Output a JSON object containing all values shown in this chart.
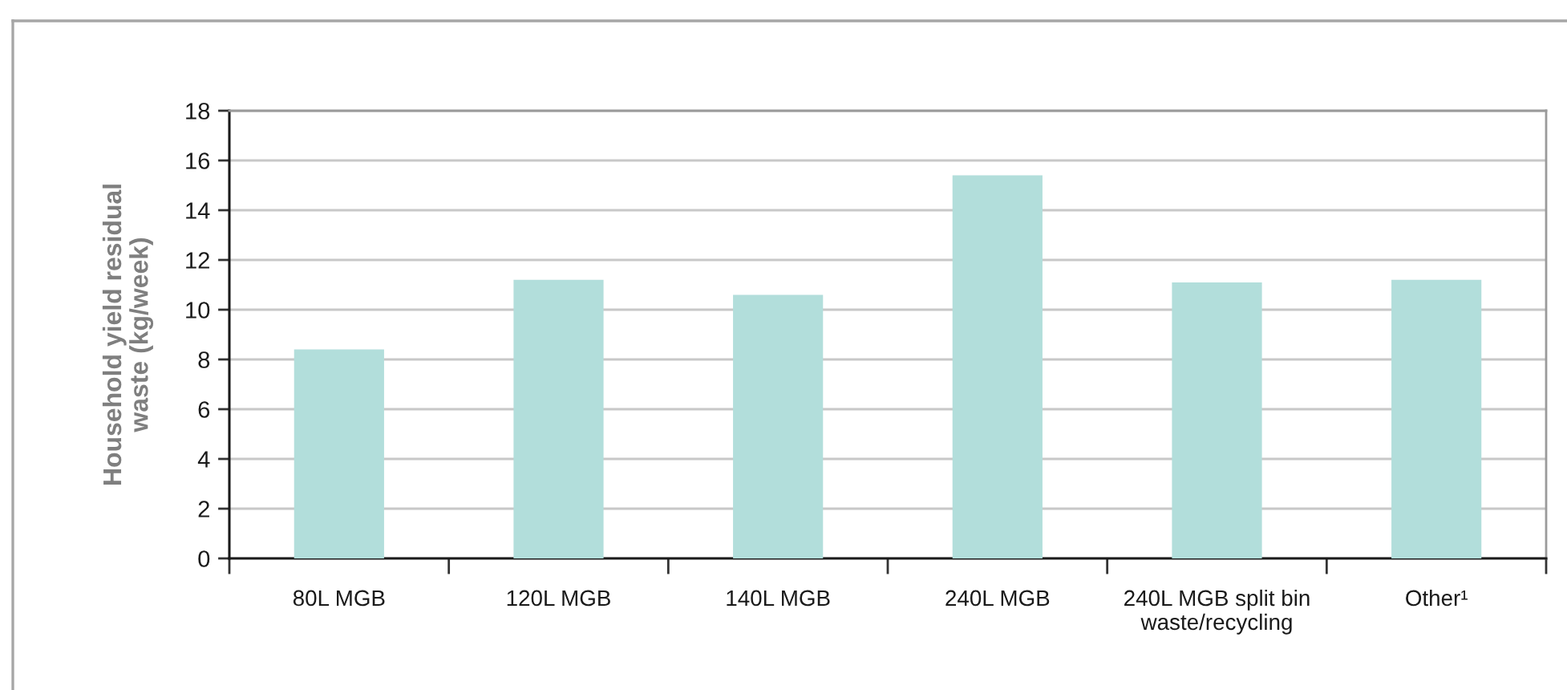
{
  "chart_data": {
    "type": "bar",
    "ylabel": "Household yield residual\nwaste (kg/week)",
    "categories": [
      "80L MGB",
      "120L MGB",
      "140L MGB",
      "240L MGB",
      "240L MGB split bin\nwaste/recycling",
      "Other¹"
    ],
    "values": [
      8.4,
      11.2,
      10.6,
      15.4,
      11.1,
      11.2
    ],
    "color": "#b2dedb",
    "ylim": [
      0,
      18
    ],
    "yticks": [
      0,
      2,
      4,
      6,
      8,
      10,
      12,
      14,
      16,
      18
    ],
    "grid": "y",
    "legend": false
  }
}
